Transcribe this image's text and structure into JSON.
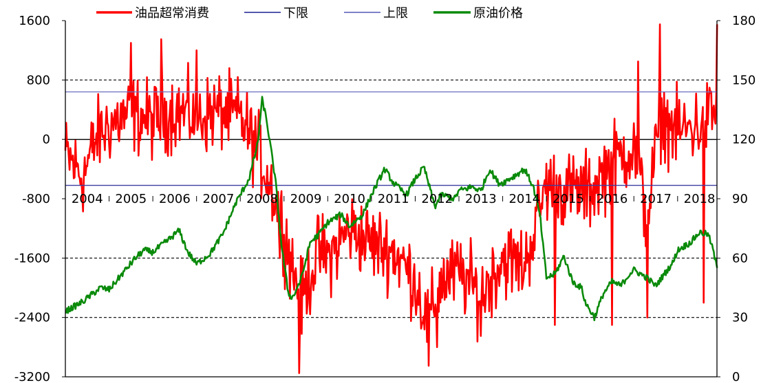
{
  "chart_data": {
    "type": "line",
    "title": "",
    "legend_position": "top",
    "legend": [
      "油品超常消费",
      "下限",
      "上限",
      "原油价格"
    ],
    "x_labels": [
      "2004",
      "2005",
      "2006",
      "2007",
      "2008",
      "2009",
      "2010",
      "2011",
      "2012",
      "2013",
      "2014",
      "2015",
      "2016",
      "2017",
      "2018"
    ],
    "y_left": {
      "range": [
        -3200,
        1600
      ],
      "ticks": [
        -3200,
        -2400,
        -1600,
        -800,
        0,
        800,
        1600
      ]
    },
    "y_right": {
      "range": [
        0,
        180
      ],
      "ticks": [
        0,
        30,
        60,
        90,
        120,
        150,
        180
      ]
    },
    "grid": {
      "dashed_left_values": [
        800,
        -1600,
        -2400
      ],
      "solid_left_values": [
        0
      ]
    },
    "series": [
      {
        "name": "油品超常消费",
        "axis": "left",
        "color": "#ff0000",
        "style": "noisy_weekly",
        "x_start": 2004.0,
        "x_end": 2018.9,
        "anchors": [
          [
            2004.0,
            -200
          ],
          [
            2004.4,
            -500
          ],
          [
            2004.7,
            0
          ],
          [
            2005.0,
            200
          ],
          [
            2005.5,
            350
          ],
          [
            2006.0,
            250
          ],
          [
            2006.5,
            400
          ],
          [
            2007.0,
            300
          ],
          [
            2007.5,
            380
          ],
          [
            2008.0,
            300
          ],
          [
            2008.4,
            -150
          ],
          [
            2008.7,
            -600
          ],
          [
            2008.9,
            -1000
          ],
          [
            2009.15,
            -1600
          ],
          [
            2009.4,
            -2200
          ],
          [
            2009.55,
            -1900
          ],
          [
            2009.8,
            -1500
          ],
          [
            2010.0,
            -1600
          ],
          [
            2010.5,
            -1200
          ],
          [
            2011.0,
            -1400
          ],
          [
            2011.5,
            -1500
          ],
          [
            2012.0,
            -1900
          ],
          [
            2012.3,
            -2500
          ],
          [
            2012.6,
            -1900
          ],
          [
            2013.0,
            -1800
          ],
          [
            2013.5,
            -2100
          ],
          [
            2014.0,
            -1600
          ],
          [
            2014.5,
            -1700
          ],
          [
            2015.0,
            -600
          ],
          [
            2015.5,
            -700
          ],
          [
            2016.0,
            -700
          ],
          [
            2016.5,
            -300
          ],
          [
            2017.0,
            -100
          ],
          [
            2017.3,
            -1100
          ],
          [
            2017.6,
            300
          ],
          [
            2018.0,
            100
          ],
          [
            2018.5,
            200
          ],
          [
            2018.9,
            400
          ]
        ],
        "amplitude": 430,
        "spikes": [
          [
            2005.5,
            1300
          ],
          [
            2006.2,
            1350
          ],
          [
            2007.0,
            1200
          ],
          [
            2008.9,
            -1600
          ],
          [
            2009.35,
            -3150
          ],
          [
            2012.3,
            -3050
          ],
          [
            2012.5,
            -2800
          ],
          [
            2013.5,
            -2650
          ],
          [
            2015.2,
            -2500
          ],
          [
            2016.5,
            -2500
          ],
          [
            2017.1,
            1050
          ],
          [
            2017.3,
            -2400
          ],
          [
            2017.6,
            1550
          ],
          [
            2018.6,
            -2200
          ],
          [
            2018.9,
            1550
          ]
        ],
        "clip": [
          -3200,
          1600
        ]
      },
      {
        "name": "下限",
        "axis": "left",
        "color": "#3b3fa0",
        "style": "flat",
        "value": -620
      },
      {
        "name": "上限",
        "axis": "left",
        "color": "#6b6fc0",
        "style": "flat",
        "value": 640
      },
      {
        "name": "原油价格",
        "axis": "right",
        "color": "#0a8a0a",
        "style": "smooth_weekly",
        "x_start": 2004.0,
        "x_end": 2018.9,
        "points": [
          [
            2004.0,
            33
          ],
          [
            2004.4,
            38
          ],
          [
            2004.8,
            45
          ],
          [
            2005.0,
            44
          ],
          [
            2005.3,
            52
          ],
          [
            2005.6,
            60
          ],
          [
            2005.8,
            64
          ],
          [
            2006.0,
            63
          ],
          [
            2006.4,
            70
          ],
          [
            2006.6,
            74
          ],
          [
            2006.8,
            63
          ],
          [
            2007.0,
            57
          ],
          [
            2007.3,
            62
          ],
          [
            2007.6,
            72
          ],
          [
            2007.9,
            88
          ],
          [
            2008.2,
            100
          ],
          [
            2008.4,
            118
          ],
          [
            2008.5,
            140
          ],
          [
            2008.6,
            130
          ],
          [
            2008.8,
            100
          ],
          [
            2008.95,
            65
          ],
          [
            2009.1,
            42
          ],
          [
            2009.2,
            40
          ],
          [
            2009.4,
            50
          ],
          [
            2009.6,
            68
          ],
          [
            2009.8,
            72
          ],
          [
            2010.0,
            78
          ],
          [
            2010.3,
            82
          ],
          [
            2010.5,
            76
          ],
          [
            2010.8,
            82
          ],
          [
            2011.0,
            92
          ],
          [
            2011.3,
            105
          ],
          [
            2011.5,
            98
          ],
          [
            2011.8,
            92
          ],
          [
            2012.0,
            100
          ],
          [
            2012.2,
            106
          ],
          [
            2012.45,
            86
          ],
          [
            2012.6,
            92
          ],
          [
            2012.9,
            90
          ],
          [
            2013.0,
            94
          ],
          [
            2013.3,
            96
          ],
          [
            2013.5,
            94
          ],
          [
            2013.7,
            105
          ],
          [
            2013.9,
            98
          ],
          [
            2014.0,
            98
          ],
          [
            2014.3,
            102
          ],
          [
            2014.5,
            105
          ],
          [
            2014.7,
            96
          ],
          [
            2014.85,
            82
          ],
          [
            2015.0,
            50
          ],
          [
            2015.2,
            52
          ],
          [
            2015.4,
            61
          ],
          [
            2015.6,
            48
          ],
          [
            2015.8,
            45
          ],
          [
            2015.9,
            37
          ],
          [
            2016.1,
            30
          ],
          [
            2016.3,
            42
          ],
          [
            2016.5,
            48
          ],
          [
            2016.7,
            46
          ],
          [
            2016.9,
            52
          ],
          [
            2017.0,
            54
          ],
          [
            2017.3,
            50
          ],
          [
            2017.5,
            46
          ],
          [
            2017.7,
            52
          ],
          [
            2017.9,
            58
          ],
          [
            2018.0,
            64
          ],
          [
            2018.3,
            68
          ],
          [
            2018.5,
            73
          ],
          [
            2018.7,
            72
          ],
          [
            2018.8,
            65
          ],
          [
            2018.9,
            55
          ]
        ],
        "amplitude": 1.6
      }
    ]
  }
}
